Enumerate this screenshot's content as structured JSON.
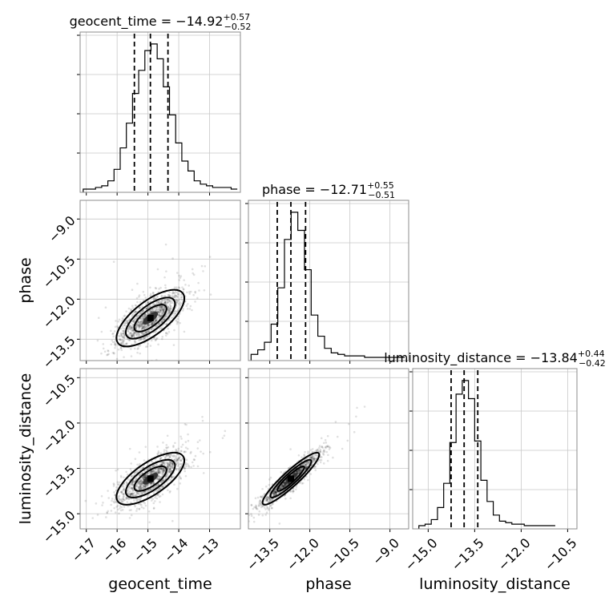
{
  "chart_data": {
    "type": "scatter",
    "title": "",
    "parameters": [
      "geocent_time",
      "phase",
      "luminosity_distance"
    ],
    "axis_labels": {
      "x": [
        "geocent_time",
        "phase",
        "luminosity_distance"
      ],
      "y": [
        "phase",
        "luminosity_distance"
      ]
    },
    "summaries": [
      {
        "parameter": "geocent_time",
        "title_main": "geocent_time = −14.92",
        "median": -14.92,
        "plus": "+0.57",
        "minus": "−0.52"
      },
      {
        "parameter": "phase",
        "title_main": "phase = −12.71",
        "median": -12.71,
        "plus": "+0.55",
        "minus": "−0.51"
      },
      {
        "parameter": "luminosity_distance",
        "title_main": "luminosity_distance = −13.84",
        "median": -13.84,
        "plus": "+0.44",
        "minus": "−0.42"
      }
    ],
    "quantile_lines": [
      [
        -15.44,
        -14.92,
        -14.35
      ],
      [
        -13.22,
        -12.71,
        -12.16
      ],
      [
        -14.26,
        -13.84,
        -13.4
      ]
    ],
    "ranges": [
      [
        -17.2,
        -12.0
      ],
      [
        -14.3,
        -8.3
      ],
      [
        -15.5,
        -10.2
      ]
    ],
    "ticks": [
      {
        "values": [
          -17,
          -16,
          -15,
          -14,
          -13
        ],
        "labels": [
          "−17",
          "−16",
          "−15",
          "−14",
          "−13"
        ]
      },
      {
        "values": [
          -13.5,
          -12.0,
          -10.5,
          -9.0
        ],
        "labels": [
          "−13.5",
          "−12.0",
          "−10.5",
          "−9.0"
        ]
      },
      {
        "values": [
          -15.0,
          -13.5,
          -12.0,
          -10.5
        ],
        "labels": [
          "−15.0",
          "−13.5",
          "−12.0",
          "−10.5"
        ]
      }
    ],
    "histograms": [
      {
        "bin_edges": [
          -17.1,
          -16.9,
          -16.7,
          -16.5,
          -16.3,
          -16.1,
          -15.9,
          -15.7,
          -15.5,
          -15.3,
          -15.1,
          -14.9,
          -14.7,
          -14.5,
          -14.3,
          -14.1,
          -13.9,
          -13.7,
          -13.5,
          -13.3,
          -13.1,
          -12.9,
          -12.7,
          -12.5,
          -12.3,
          -12.1
        ],
        "counts": [
          0,
          0,
          1,
          2,
          5,
          12,
          25,
          40,
          58,
          72,
          84,
          88,
          79,
          62,
          45,
          28,
          17,
          11,
          5,
          3,
          2,
          1,
          1,
          1,
          0
        ]
      },
      {
        "bin_edges": [
          -14.2,
          -13.95,
          -13.7,
          -13.45,
          -13.2,
          -12.95,
          -12.7,
          -12.45,
          -12.2,
          -11.95,
          -11.7,
          -11.45,
          -11.2,
          -10.95,
          -10.7,
          -10.45,
          -10.2,
          -9.95,
          -9.7,
          -9.45,
          -9.2,
          -8.95,
          -8.7,
          -8.45
        ],
        "counts": [
          2,
          5,
          10,
          22,
          46,
          78,
          96,
          84,
          58,
          28,
          14,
          6,
          3,
          2,
          1,
          1,
          1,
          0,
          0,
          0,
          0,
          0,
          0
        ]
      },
      {
        "bin_edges": [
          -15.3,
          -15.1,
          -14.9,
          -14.7,
          -14.5,
          -14.3,
          -14.1,
          -13.9,
          -13.7,
          -13.5,
          -13.3,
          -13.1,
          -12.9,
          -12.7,
          -12.5,
          -12.3,
          -12.1,
          -11.9,
          -11.7,
          -11.5,
          -11.3,
          -11.1,
          -10.9
        ],
        "counts": [
          0,
          1,
          4,
          12,
          28,
          55,
          87,
          96,
          84,
          56,
          30,
          16,
          7,
          3,
          2,
          1,
          1,
          0,
          0,
          0,
          0,
          0
        ]
      }
    ],
    "scatter_panels": [
      {
        "x": "geocent_time",
        "y": "phase",
        "x_center": -14.92,
        "y_center": -12.71,
        "x_sd": 0.55,
        "y_sd": 0.53,
        "correlation": 0.7
      },
      {
        "x": "geocent_time",
        "y": "luminosity_distance",
        "x_center": -14.92,
        "y_center": -13.84,
        "x_sd": 0.55,
        "y_sd": 0.43,
        "correlation": 0.7
      },
      {
        "x": "phase",
        "y": "luminosity_distance",
        "x_center": -12.71,
        "y_center": -13.84,
        "x_sd": 0.53,
        "y_sd": 0.43,
        "correlation": 0.92
      }
    ],
    "grid": true,
    "colors": {
      "line": "#000000",
      "points": "#000000",
      "frame": "#8c8c8c",
      "grid": "#c8c8c8"
    }
  }
}
